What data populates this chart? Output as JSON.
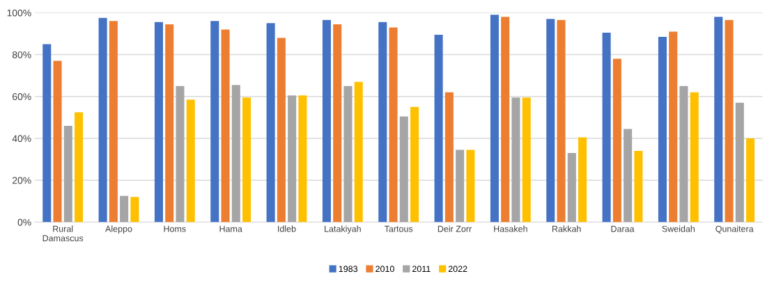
{
  "chart_data": {
    "type": "bar",
    "categories": [
      "Rural\nDamascus",
      "Aleppo",
      "Homs",
      "Hama",
      "Idleb",
      "Latakiyah",
      "Tartous",
      "Deir Zorr",
      "Hasakeh",
      "Rakkah",
      "Daraa",
      "Sweidah",
      "Qunaitera"
    ],
    "series": [
      {
        "name": "1983",
        "color": "#4472c4",
        "values": [
          85,
          97.5,
          95.5,
          96,
          95,
          96.5,
          95.5,
          89.5,
          99,
          97,
          90.5,
          88.5,
          98
        ]
      },
      {
        "name": "2010",
        "color": "#ed7d31",
        "values": [
          77,
          96,
          94.5,
          92,
          88,
          94.5,
          93,
          62,
          98,
          96.5,
          78,
          91,
          96.5
        ]
      },
      {
        "name": "2011",
        "color": "#a5a5a5",
        "values": [
          46,
          12.5,
          65,
          65.5,
          60.5,
          65,
          50.5,
          34.5,
          59.5,
          33,
          44.5,
          65,
          57
        ]
      },
      {
        "name": "2022",
        "color": "#ffc000",
        "values": [
          52.5,
          12,
          58.5,
          59.5,
          60.5,
          67,
          55,
          34.5,
          59.5,
          40.5,
          34,
          62,
          40
        ]
      }
    ],
    "ylim": [
      0,
      100
    ],
    "yticks": [
      {
        "value": 0,
        "label": "0%"
      },
      {
        "value": 20,
        "label": "20%"
      },
      {
        "value": 40,
        "label": "40%"
      },
      {
        "value": 60,
        "label": "60%"
      },
      {
        "value": 80,
        "label": "80%"
      },
      {
        "value": 100,
        "label": "100%"
      }
    ],
    "grid": "y",
    "legend": "bottom"
  }
}
